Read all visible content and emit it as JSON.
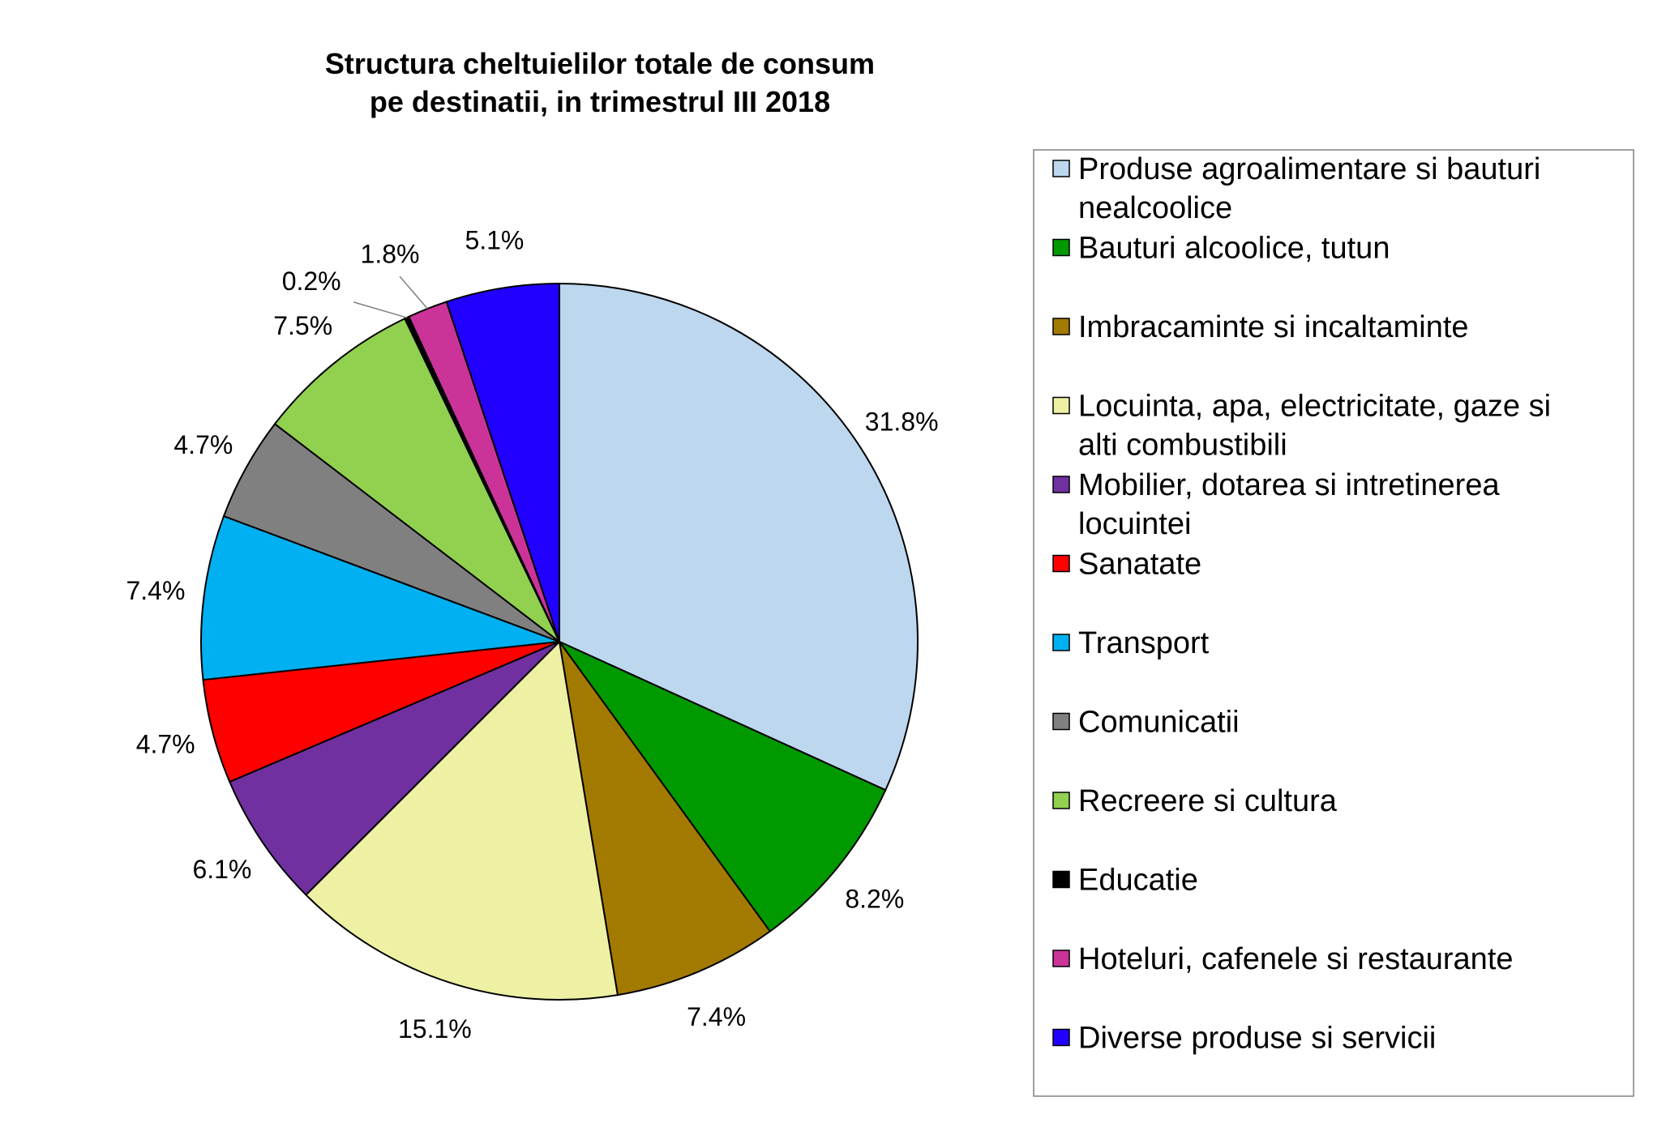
{
  "chart_data": {
    "type": "pie",
    "title": [
      "Structura cheltuielilor totale de consum",
      "pe destinatii, in trimestrul III 2018"
    ],
    "unit": "%",
    "slices": [
      {
        "name": "Produse agroalimentare si bauturi nealcoolice",
        "legend_lines": [
          "Produse agroalimentare si bauturi",
          "nealcoolice"
        ],
        "value": 31.8,
        "label": "31.8%",
        "color": "#BDD7EE"
      },
      {
        "name": "Bauturi alcoolice, tutun",
        "legend_lines": [
          "Bauturi alcoolice, tutun"
        ],
        "value": 8.2,
        "label": "8.2%",
        "color": "#009900"
      },
      {
        "name": "Imbracaminte si incaltaminte",
        "legend_lines": [
          "Imbracaminte si incaltaminte"
        ],
        "value": 7.4,
        "label": "7.4%",
        "color": "#A37A00"
      },
      {
        "name": "Locuinta, apa, electricitate, gaze si alti combustibili",
        "legend_lines": [
          "Locuinta, apa, electricitate, gaze si",
          "alti combustibili"
        ],
        "value": 15.1,
        "label": "15.1%",
        "color": "#EEF0A4"
      },
      {
        "name": "Mobilier, dotarea si intretinerea locuintei",
        "legend_lines": [
          "Mobilier, dotarea si intretinerea",
          "locuintei"
        ],
        "value": 6.1,
        "label": "6.1%",
        "color": "#7030A0"
      },
      {
        "name": "Sanatate",
        "legend_lines": [
          "Sanatate"
        ],
        "value": 4.7,
        "label": "4.7%",
        "color": "#FF0000"
      },
      {
        "name": "Transport",
        "legend_lines": [
          "Transport"
        ],
        "value": 7.4,
        "label": "7.4%",
        "color": "#00B0F0"
      },
      {
        "name": "Comunicatii",
        "legend_lines": [
          "Comunicatii"
        ],
        "value": 4.7,
        "label": "4.7%",
        "color": "#808080"
      },
      {
        "name": "Recreere si cultura",
        "legend_lines": [
          "Recreere si cultura"
        ],
        "value": 7.5,
        "label": "7.5%",
        "color": "#92D050"
      },
      {
        "name": "Educatie",
        "legend_lines": [
          "Educatie"
        ],
        "value": 0.2,
        "label": "0.2%",
        "color": "#000000"
      },
      {
        "name": "Hoteluri, cafenele si restaurante",
        "legend_lines": [
          "Hoteluri, cafenele si restaurante"
        ],
        "value": 1.8,
        "label": "1.8%",
        "color": "#CC3399"
      },
      {
        "name": "Diverse produse si servicii",
        "legend_lines": [
          "Diverse produse si servicii"
        ],
        "value": 5.1,
        "label": "5.1%",
        "color": "#2200FF"
      }
    ],
    "start_angle": "12 o'clock",
    "direction": "clockwise",
    "legend_position": "right"
  }
}
